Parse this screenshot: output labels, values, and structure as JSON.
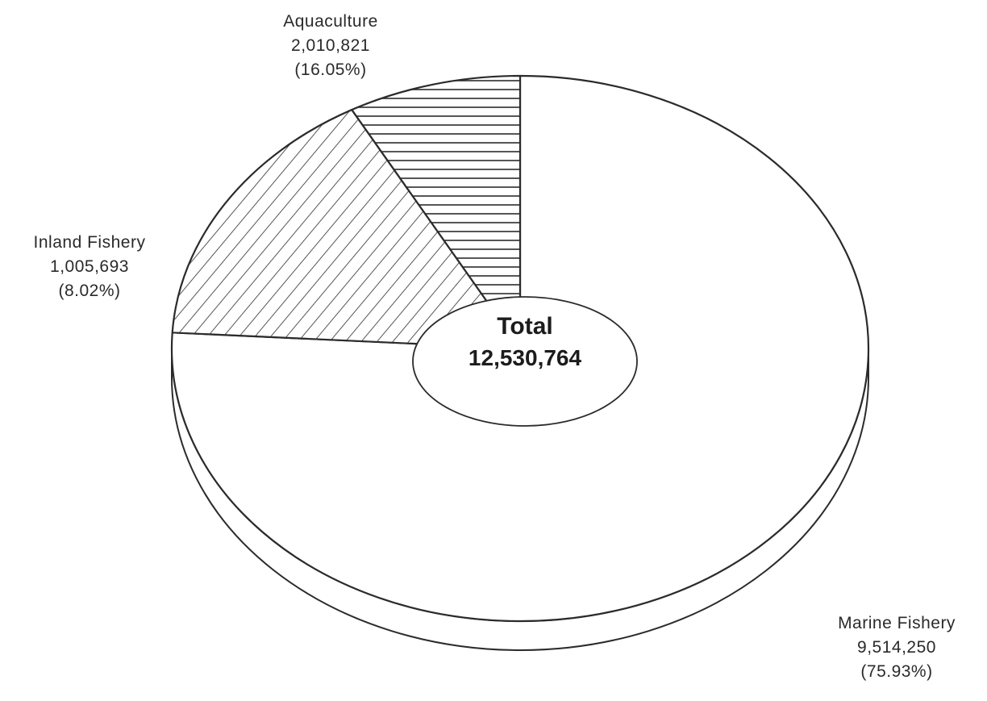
{
  "chart_data": {
    "type": "pie",
    "style": "3d-hatched",
    "categories": [
      "Marine Fishery",
      "Aquaculture",
      "Inland Fishery"
    ],
    "values": [
      9514250,
      2010821,
      1005693
    ],
    "value_labels": [
      "9,514,250",
      "2,010,821",
      "1,005,693"
    ],
    "percent_labels": [
      "(75.93%)",
      "(16.05%)",
      "(8.02%)"
    ],
    "percents": [
      75.93,
      16.05,
      8.02
    ],
    "patterns": [
      "plain",
      "diagonal-hatch",
      "horizontal-hatch"
    ],
    "center_label": {
      "title": "Total",
      "value": "12,530,764"
    }
  }
}
